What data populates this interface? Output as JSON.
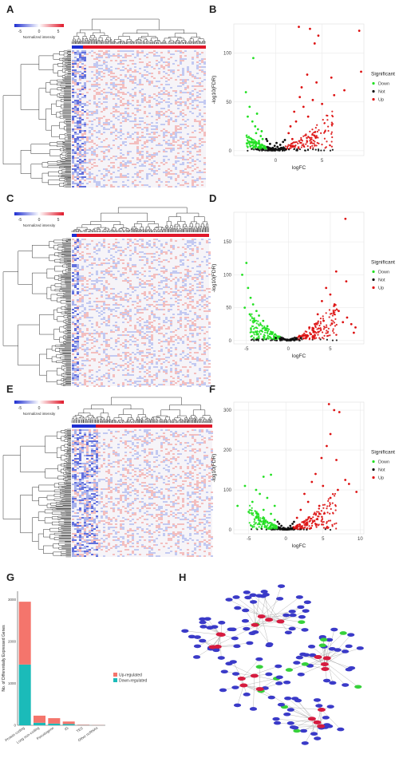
{
  "panels": {
    "A": "A",
    "B": "B",
    "C": "C",
    "D": "D",
    "E": "E",
    "F": "F",
    "G": "G",
    "H": "H"
  },
  "heatmap_legend": {
    "ticks": [
      "-5",
      "0",
      "5"
    ],
    "label": "Normalized intensity",
    "colors": {
      "low": "#1f2fd1",
      "mid": "#ffffff",
      "high": "#e0182a"
    }
  },
  "annotation_colors": {
    "group1": "#1f2fd1",
    "group2": "#e0182a"
  },
  "volcano_colors": {
    "Down": "#22e022",
    "Not": "#111111",
    "Up": "#dd1111"
  },
  "chart_data": [
    {
      "panel": "B",
      "type": "scatter",
      "xlabel": "logFC",
      "ylabel": "-log10(FDR)",
      "x_ticks": [
        "0",
        "5"
      ],
      "y_ticks": [
        "0",
        "50",
        "100"
      ],
      "xlim": [
        -4.5,
        9.5
      ],
      "ylim": [
        -5,
        130
      ],
      "legend": {
        "title": "Significant",
        "entries": [
          "Down",
          "Not",
          "Up"
        ],
        "placement": "right"
      },
      "series": [
        {
          "name": "Down",
          "points": [
            [
              -2.4,
              95
            ],
            [
              -3.2,
              60
            ],
            [
              -2.8,
              45
            ],
            [
              -2.5,
              30
            ],
            [
              -2.2,
              25
            ],
            [
              -1.9,
              22
            ],
            [
              -2.1,
              18
            ],
            [
              -1.6,
              15
            ],
            [
              -2.6,
              12
            ],
            [
              -1.8,
              10
            ],
            [
              -1.5,
              20
            ],
            [
              -3,
              35
            ],
            [
              -2,
              38
            ],
            [
              -1.4,
              12
            ]
          ]
        },
        {
          "name": "Not",
          "points": [
            [
              0,
              2
            ],
            [
              0.2,
              4
            ],
            [
              -0.3,
              3
            ],
            [
              0.5,
              6
            ],
            [
              -0.6,
              7
            ],
            [
              0.8,
              9
            ],
            [
              -0.9,
              10
            ],
            [
              0.3,
              1
            ],
            [
              -0.1,
              5
            ],
            [
              0.6,
              3
            ],
            [
              -0.5,
              2
            ],
            [
              1,
              11
            ],
            [
              -1,
              12
            ],
            [
              0.1,
              8
            ]
          ]
        },
        {
          "name": "Up",
          "points": [
            [
              2.5,
              127
            ],
            [
              3.7,
              125
            ],
            [
              4.2,
              110
            ],
            [
              4.6,
              118
            ],
            [
              9,
              123
            ],
            [
              9.2,
              81
            ],
            [
              6,
              75
            ],
            [
              7.4,
              62
            ],
            [
              6.3,
              57
            ],
            [
              3.4,
              78
            ],
            [
              4.4,
              70
            ],
            [
              2.8,
              65
            ],
            [
              2,
              40
            ],
            [
              1.6,
              25
            ],
            [
              2.2,
              30
            ],
            [
              3,
              45
            ],
            [
              3.5,
              35
            ],
            [
              1.4,
              18
            ],
            [
              2.6,
              55
            ],
            [
              1.8,
              12
            ],
            [
              5,
              48
            ],
            [
              4,
              52
            ]
          ]
        }
      ]
    },
    {
      "panel": "D",
      "type": "scatter",
      "xlabel": "logFC",
      "ylabel": "-log10(FDR)",
      "x_ticks": [
        "-5",
        "0",
        "5"
      ],
      "y_ticks": [
        "0",
        "50",
        "100",
        "150"
      ],
      "xlim": [
        -6.5,
        9
      ],
      "ylim": [
        -5,
        195
      ],
      "legend": {
        "title": "Significant",
        "entries": [
          "Down",
          "Not",
          "Up"
        ],
        "placement": "right"
      },
      "series": [
        {
          "name": "Down",
          "points": [
            [
              -5,
              118
            ],
            [
              -5.5,
              100
            ],
            [
              -4.8,
              80
            ],
            [
              -4.5,
              65
            ],
            [
              -4.2,
              55
            ],
            [
              -3.8,
              45
            ],
            [
              -3.5,
              38
            ],
            [
              -3,
              30
            ],
            [
              -2.5,
              22
            ],
            [
              -4,
              30
            ],
            [
              -3.2,
              15
            ],
            [
              -2.2,
              10
            ],
            [
              -5.2,
              50
            ],
            [
              -4.6,
              40
            ]
          ]
        },
        {
          "name": "Not",
          "points": [
            [
              0,
              1
            ],
            [
              0.5,
              2
            ],
            [
              -0.5,
              2
            ],
            [
              1,
              3
            ],
            [
              -1,
              3
            ],
            [
              1.5,
              4
            ],
            [
              -1.5,
              4
            ],
            [
              0.2,
              0.5
            ],
            [
              -0.2,
              1
            ],
            [
              0.8,
              1.5
            ]
          ]
        },
        {
          "name": "Up",
          "points": [
            [
              6.8,
              185
            ],
            [
              5.7,
              105
            ],
            [
              4.5,
              80
            ],
            [
              6.9,
              90
            ],
            [
              5,
              70
            ],
            [
              4,
              60
            ],
            [
              5.5,
              55
            ],
            [
              6,
              45
            ],
            [
              3.5,
              40
            ],
            [
              7,
              35
            ],
            [
              7.5,
              25
            ],
            [
              2.5,
              20
            ],
            [
              3,
              15
            ],
            [
              8,
              20
            ],
            [
              4.2,
              30
            ],
            [
              6.5,
              28
            ],
            [
              2,
              8
            ],
            [
              7.8,
              12
            ]
          ]
        }
      ]
    },
    {
      "panel": "F",
      "type": "scatter",
      "xlabel": "logFC",
      "ylabel": "-log10(FDR)",
      "x_ticks": [
        "-5",
        "0",
        "5",
        "10"
      ],
      "y_ticks": [
        "0",
        "100",
        "200",
        "300"
      ],
      "xlim": [
        -7,
        10.5
      ],
      "ylim": [
        -10,
        320
      ],
      "legend": {
        "title": "Significant",
        "entries": [
          "Down",
          "Not",
          "Up"
        ],
        "placement": "right"
      },
      "series": [
        {
          "name": "Down",
          "points": [
            [
              -2,
              138
            ],
            [
              -3,
              133
            ],
            [
              -5.5,
              110
            ],
            [
              -4,
              100
            ],
            [
              -3.5,
              90
            ],
            [
              -2.5,
              80
            ],
            [
              -4.5,
              70
            ],
            [
              -1.5,
              60
            ],
            [
              -3,
              50
            ],
            [
              -6.5,
              60
            ],
            [
              -2,
              40
            ],
            [
              -5,
              45
            ],
            [
              -1.5,
              25
            ],
            [
              -4,
              30
            ],
            [
              -2.8,
              20
            ],
            [
              -3.6,
              15
            ]
          ]
        },
        {
          "name": "Not",
          "points": [
            [
              0,
              2
            ],
            [
              0.3,
              5
            ],
            [
              -0.3,
              5
            ],
            [
              0.6,
              10
            ],
            [
              -0.6,
              10
            ],
            [
              0.9,
              15
            ],
            [
              -0.9,
              15
            ],
            [
              0.1,
              1
            ],
            [
              -0.1,
              3
            ],
            [
              1.1,
              20
            ],
            [
              -1.1,
              20
            ]
          ]
        },
        {
          "name": "Up",
          "points": [
            [
              5.8,
              315
            ],
            [
              6.5,
              300
            ],
            [
              7.2,
              295
            ],
            [
              6,
              240
            ],
            [
              5.5,
              210
            ],
            [
              4.8,
              180
            ],
            [
              6.8,
              175
            ],
            [
              8,
              125
            ],
            [
              8.5,
              115
            ],
            [
              9.5,
              95
            ],
            [
              4,
              140
            ],
            [
              3.5,
              120
            ],
            [
              5,
              110
            ],
            [
              2.5,
              90
            ],
            [
              3,
              70
            ],
            [
              2,
              50
            ],
            [
              4.5,
              60
            ],
            [
              6,
              80
            ],
            [
              1.5,
              30
            ],
            [
              7,
              100
            ]
          ]
        }
      ]
    },
    {
      "panel": "G",
      "type": "bar",
      "ylabel": "No. of Differentially Expressed Genes",
      "categories": [
        "Protein coding",
        "Long non-coding",
        "Pseudogene",
        "IG",
        "TEC",
        "Other ncRNAs"
      ],
      "y_ticks": [
        "0",
        "1000",
        "2000",
        "3000"
      ],
      "ylim": [
        0,
        3200
      ],
      "legend": {
        "placement": "right"
      },
      "series": [
        {
          "name": "Down-regulated",
          "values": [
            1450,
            60,
            40,
            30,
            5,
            3
          ]
        },
        {
          "name": "Up-regulated",
          "values": [
            1500,
            170,
            130,
            60,
            10,
            5
          ]
        }
      ],
      "colors": {
        "Up-regulated": "#f4756c",
        "Down-regulated": "#1bbbb9"
      }
    }
  ],
  "network": {
    "colors": {
      "hub": "#d61b3f",
      "mid": "#36d13a",
      "leaf": "#3a3ac8"
    }
  }
}
